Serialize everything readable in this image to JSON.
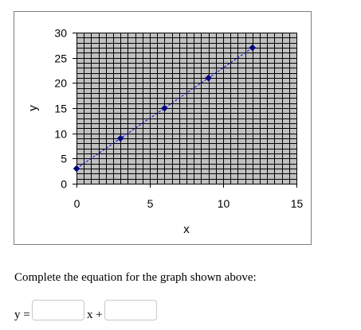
{
  "chart_data": {
    "type": "line",
    "title": "",
    "xlabel": "x",
    "ylabel": "y",
    "xlim": [
      0,
      15
    ],
    "ylim": [
      0,
      30
    ],
    "xticks": [
      0,
      5,
      10,
      15
    ],
    "yticks": [
      0,
      5,
      10,
      15,
      20,
      25,
      30
    ],
    "grid": true,
    "series": [
      {
        "x": [
          0,
          3,
          6,
          9,
          12
        ],
        "y": [
          3,
          9,
          15,
          21,
          27
        ]
      }
    ],
    "colors": {
      "plot_bg": "#c0c0c0",
      "grid": "#000000",
      "line": "#0000cc",
      "marker": "#000080"
    }
  },
  "question": {
    "prompt": "Complete the equation for the graph shown above:",
    "y_label": "y =",
    "x_label": "x +",
    "slope_value": "",
    "intercept_value": ""
  }
}
